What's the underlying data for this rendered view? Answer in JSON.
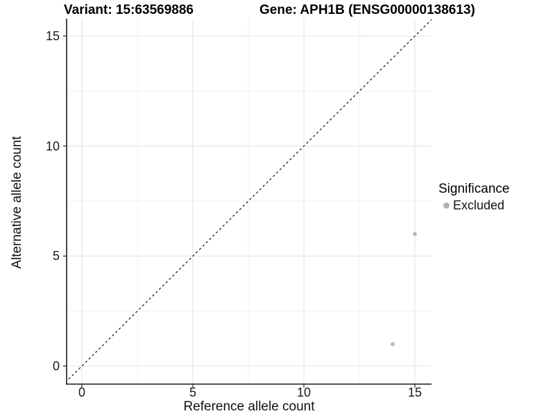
{
  "header": {
    "variant_title": "Variant: 15:63569886",
    "gene_title": "Gene: APH1B (ENSG00000138613)"
  },
  "colors": {
    "background": "#ffffff",
    "grid_major": "#e3e3e3",
    "grid_minor": "#f0f0f0",
    "axis_line": "#1a1a1a",
    "tick_mark": "#333333",
    "dashed_line": "#111111",
    "excluded_point": "#b4b4b4"
  },
  "chart_data": {
    "type": "scatter",
    "title_left": "Variant: 15:63569886",
    "title_right": "Gene: APH1B (ENSG00000138613)",
    "xlabel": "Reference allele count",
    "ylabel": "Alternative allele count",
    "xlim": [
      -0.7,
      15.75
    ],
    "ylim": [
      -0.85,
      15.8
    ],
    "xticks": [
      0,
      5,
      10,
      15
    ],
    "yticks": [
      0,
      5,
      10,
      15
    ],
    "x_minor_ticks": [
      2.5,
      7.5,
      12.5
    ],
    "y_minor_ticks": [
      2.5,
      7.5,
      12.5
    ],
    "grid": "major+minor",
    "reference_line": {
      "type": "y=x",
      "style": "dashed",
      "color": "#111111"
    },
    "series": [
      {
        "name": "Excluded",
        "color": "#b4b4b4",
        "points": [
          [
            14,
            1
          ],
          [
            15,
            6
          ]
        ]
      }
    ],
    "legend": {
      "title": "Significance",
      "position": "right",
      "items": [
        {
          "label": "Excluded",
          "color": "#b4b4b4"
        }
      ]
    }
  }
}
